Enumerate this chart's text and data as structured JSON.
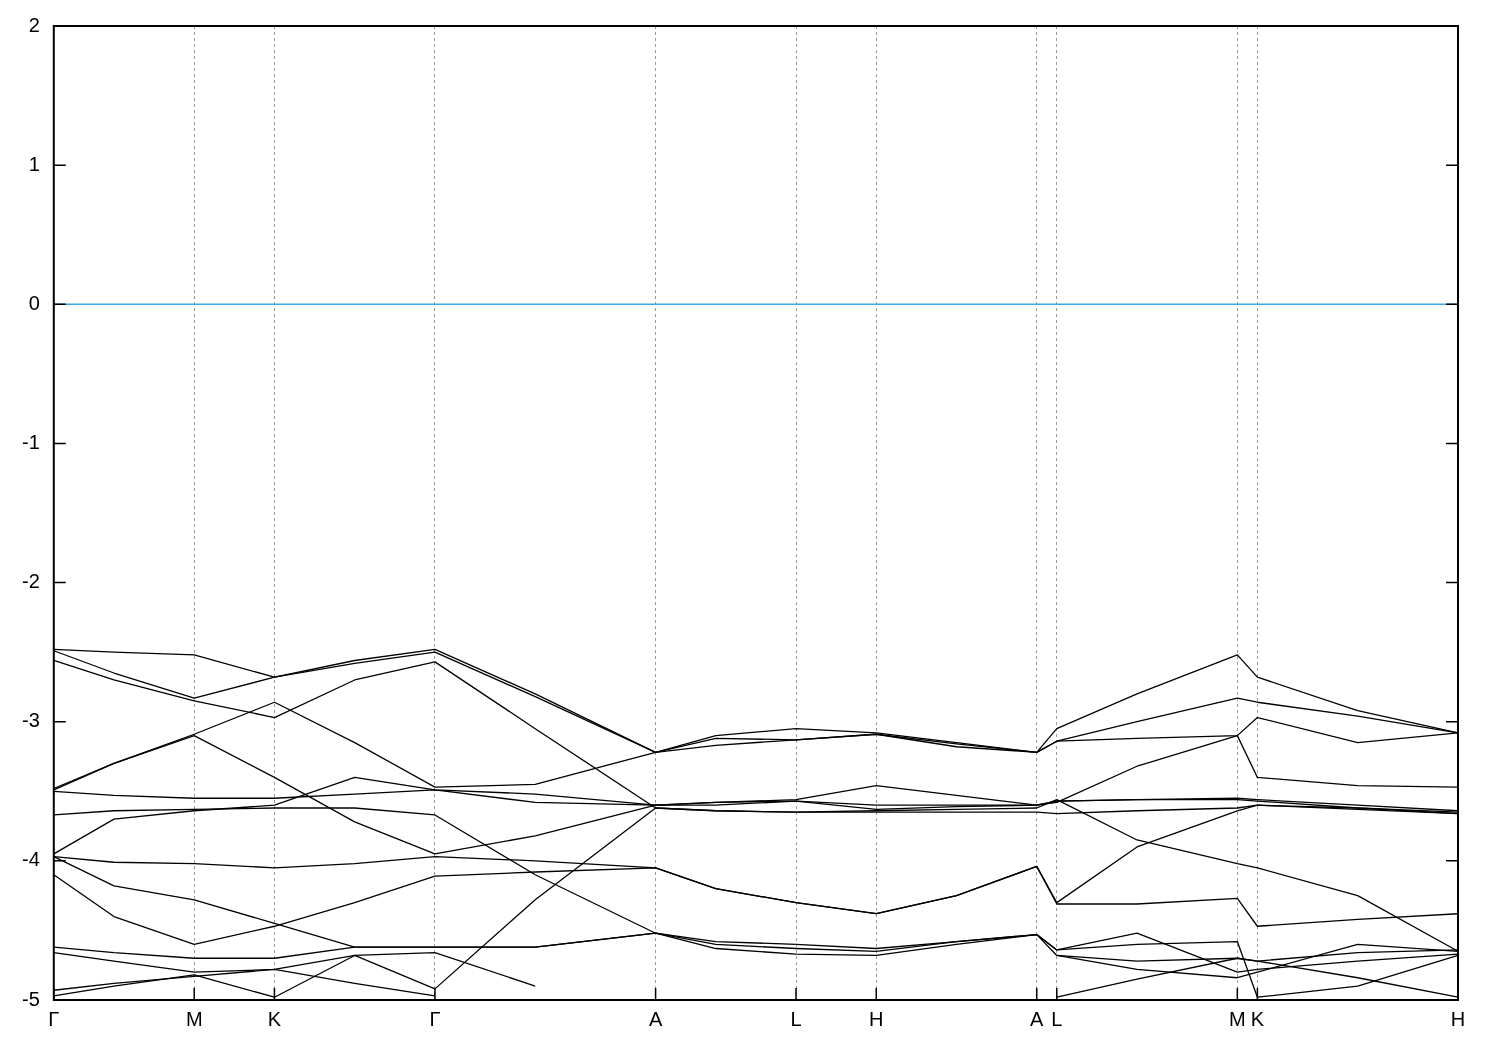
{
  "chart_data": {
    "type": "line",
    "categories": [
      "Γ",
      null,
      null,
      null,
      null,
      null,
      null,
      "M",
      null,
      null,
      null,
      "K",
      null,
      null,
      null,
      null,
      null,
      null,
      null,
      "Γ",
      null,
      null,
      null,
      null,
      null,
      null,
      null,
      null,
      null,
      null,
      "A",
      null,
      null,
      null,
      null,
      null,
      null,
      "L",
      null,
      null,
      null,
      "H",
      null,
      null,
      null,
      null,
      null,
      null,
      null,
      "A",
      "L",
      null,
      null,
      null,
      null,
      null,
      null,
      null,
      null,
      "M",
      "K",
      null,
      null,
      null,
      null,
      null,
      null,
      null,
      null,
      null,
      "H"
    ],
    "series": [
      {
        "color": "#000000",
        "values": [
          -2.48,
          null,
          null,
          -2.5,
          null,
          null,
          null,
          -2.52,
          null,
          null,
          null,
          -2.68,
          null,
          null,
          null,
          -2.56,
          null,
          null,
          null,
          -2.48,
          null,
          null,
          null,
          null,
          -2.8,
          null,
          null,
          null,
          null,
          null,
          -3.22,
          null,
          null,
          -3.1,
          null,
          null,
          null,
          -3.05,
          null,
          null,
          null,
          -3.08,
          null,
          null,
          null,
          -3.15,
          null,
          null,
          null,
          -3.22,
          -3.05,
          null,
          null,
          null,
          -2.8,
          null,
          null,
          null,
          null,
          -2.52,
          -2.68,
          null,
          null,
          null,
          null,
          -2.92,
          null,
          null,
          null,
          null,
          -3.08
        ]
      },
      {
        "color": "#000000",
        "values": [
          -2.49,
          null,
          null,
          -2.65,
          null,
          null,
          null,
          -2.83,
          null,
          null,
          null,
          -2.68,
          null,
          null,
          null,
          -2.58,
          null,
          null,
          null,
          -2.5,
          null,
          null,
          null,
          null,
          -2.82,
          null,
          null,
          null,
          null,
          null,
          -3.22,
          null,
          null,
          -3.17,
          null,
          null,
          null,
          -3.13,
          null,
          null,
          null,
          -3.09,
          null,
          null,
          null,
          -3.16,
          null,
          null,
          null,
          -3.22,
          -3.14,
          null,
          null,
          null,
          -3.0,
          null,
          null,
          null,
          null,
          -2.83,
          -2.86,
          null,
          null,
          null,
          null,
          -2.96,
          null,
          null,
          null,
          null,
          -3.08
        ]
      },
      {
        "color": "#000000",
        "values": [
          -2.56,
          null,
          null,
          -2.7,
          null,
          null,
          null,
          -2.85,
          null,
          null,
          null,
          -2.97,
          null,
          null,
          null,
          -2.7,
          null,
          null,
          null,
          -2.57,
          null,
          null,
          null,
          null,
          -3.05,
          null,
          null,
          null,
          null,
          null,
          -3.62,
          null,
          null,
          -3.64,
          null,
          null,
          null,
          -3.65,
          null,
          null,
          null,
          -3.65,
          null,
          null,
          null,
          -3.65,
          null,
          null,
          null,
          -3.65,
          -3.66,
          null,
          null,
          null,
          -3.64,
          null,
          null,
          null,
          null,
          -3.62,
          -3.6,
          null,
          null,
          null,
          null,
          -3.62,
          null,
          null,
          null,
          null,
          -3.66
        ]
      },
      {
        "color": "#000000",
        "values": [
          -3.48,
          null,
          null,
          -3.3,
          null,
          null,
          null,
          -3.09,
          null,
          null,
          null,
          -2.86,
          null,
          null,
          null,
          -3.15,
          null,
          null,
          null,
          -3.47,
          null,
          null,
          null,
          null,
          -3.45,
          null,
          null,
          null,
          null,
          null,
          -3.22,
          null,
          null,
          -3.12,
          null,
          null,
          null,
          -3.13,
          null,
          null,
          null,
          -3.09,
          null,
          null,
          null,
          -3.18,
          null,
          null,
          null,
          -3.22,
          -3.14,
          null,
          null,
          null,
          -3.12,
          null,
          null,
          null,
          null,
          -3.1,
          -2.97,
          null,
          null,
          null,
          null,
          -3.15,
          null,
          null,
          null,
          null,
          -3.08
        ]
      },
      {
        "color": "#000000",
        "values": [
          -3.49,
          null,
          null,
          -3.3,
          null,
          null,
          null,
          -3.1,
          null,
          null,
          null,
          -3.4,
          null,
          null,
          null,
          -3.72,
          null,
          null,
          null,
          -3.95,
          null,
          null,
          null,
          null,
          -3.82,
          null,
          null,
          null,
          null,
          null,
          -3.6,
          null,
          null,
          -3.58,
          null,
          null,
          null,
          -3.56,
          null,
          null,
          null,
          -3.46,
          null,
          null,
          null,
          -3.53,
          null,
          null,
          null,
          -3.6,
          -3.58,
          null,
          null,
          null,
          -3.32,
          null,
          null,
          null,
          null,
          -3.1,
          -3.4,
          null,
          null,
          null,
          null,
          -3.46,
          null,
          null,
          null,
          null,
          -3.47
        ]
      },
      {
        "color": "#000000",
        "values": [
          -3.5,
          null,
          null,
          -3.53,
          null,
          null,
          null,
          -3.55,
          null,
          null,
          null,
          -3.55,
          null,
          null,
          null,
          -3.52,
          null,
          null,
          null,
          -3.49,
          null,
          null,
          null,
          null,
          -3.58,
          null,
          null,
          null,
          null,
          null,
          -3.6,
          null,
          null,
          -3.58,
          null,
          null,
          null,
          -3.57,
          null,
          null,
          null,
          -3.63,
          null,
          null,
          null,
          -3.61,
          null,
          null,
          null,
          -3.6,
          -3.57,
          null,
          null,
          null,
          -3.56,
          null,
          null,
          null,
          null,
          -3.55,
          -3.56,
          null,
          null,
          null,
          null,
          -3.6,
          null,
          null,
          null,
          null,
          -3.64
        ]
      },
      {
        "color": "#000000",
        "values": [
          -3.67,
          null,
          null,
          -3.64,
          null,
          null,
          null,
          -3.63,
          null,
          null,
          null,
          -3.62,
          null,
          null,
          null,
          -3.62,
          null,
          null,
          null,
          -3.67,
          null,
          null,
          null,
          null,
          -4.1,
          null,
          null,
          null,
          null,
          null,
          -4.52,
          null,
          null,
          -4.6,
          null,
          null,
          null,
          -4.63,
          null,
          null,
          null,
          -4.65,
          null,
          null,
          null,
          -4.58,
          null,
          null,
          null,
          -4.53,
          -4.64,
          null,
          null,
          null,
          -4.52,
          null,
          null,
          null,
          null,
          -4.8,
          -4.78,
          null,
          null,
          null,
          null,
          -4.72,
          null,
          null,
          null,
          null,
          -4.67
        ]
      },
      {
        "color": "#000000",
        "values": [
          -3.95,
          null,
          null,
          -3.7,
          null,
          null,
          null,
          -3.64,
          null,
          null,
          null,
          -3.6,
          null,
          null,
          null,
          -3.4,
          null,
          null,
          null,
          -3.49,
          null,
          null,
          null,
          null,
          -3.52,
          null,
          null,
          null,
          null,
          null,
          -3.6,
          null,
          null,
          -3.6,
          null,
          null,
          null,
          -3.57,
          null,
          null,
          null,
          -3.6,
          null,
          null,
          null,
          -3.6,
          null,
          null,
          null,
          -3.6,
          -3.57,
          null,
          null,
          null,
          -3.56,
          null,
          null,
          null,
          null,
          -3.56,
          -3.57,
          null,
          null,
          null,
          null,
          -3.62,
          null,
          null,
          null,
          null,
          -3.65
        ]
      },
      {
        "color": "#000000",
        "values": [
          -3.97,
          null,
          null,
          -4.01,
          null,
          null,
          null,
          -4.02,
          null,
          null,
          null,
          -4.05,
          null,
          null,
          null,
          -4.02,
          null,
          null,
          null,
          -3.97,
          null,
          null,
          null,
          null,
          -4.0,
          null,
          null,
          null,
          null,
          null,
          -4.05,
          null,
          null,
          -4.2,
          null,
          null,
          null,
          -4.3,
          null,
          null,
          null,
          -4.38,
          null,
          null,
          null,
          -4.25,
          null,
          null,
          null,
          -4.04,
          -4.31,
          null,
          null,
          null,
          -4.31,
          null,
          null,
          null,
          null,
          -4.27,
          -4.47,
          null,
          null,
          null,
          null,
          -4.42,
          null,
          null,
          null,
          null,
          -4.38
        ]
      },
      {
        "color": "#000000",
        "values": [
          -3.97,
          null,
          null,
          -4.18,
          null,
          null,
          null,
          -4.28,
          null,
          null,
          null,
          -4.45,
          null,
          null,
          null,
          -4.62,
          null,
          null,
          null,
          -4.62,
          null,
          null,
          null,
          null,
          -4.62,
          null,
          null,
          null,
          null,
          null,
          -4.52,
          null,
          null,
          -4.58,
          null,
          null,
          null,
          -4.6,
          null,
          null,
          null,
          -4.63,
          null,
          null,
          null,
          -4.58,
          null,
          null,
          null,
          -4.53,
          -4.64,
          null,
          null,
          null,
          -4.6,
          null,
          null,
          null,
          null,
          -4.58,
          -4.98,
          null,
          null,
          null,
          null,
          -4.9,
          null,
          null,
          null,
          null,
          -4.68
        ]
      },
      {
        "color": "#000000",
        "values": [
          -4.1,
          null,
          null,
          -4.4,
          null,
          null,
          null,
          -4.6,
          null,
          null,
          null,
          -4.47,
          null,
          null,
          null,
          -4.3,
          null,
          null,
          null,
          -4.11,
          null,
          null,
          null,
          null,
          -4.08,
          null,
          null,
          null,
          null,
          null,
          -4.05,
          null,
          null,
          -4.2,
          null,
          null,
          null,
          -4.3,
          null,
          null,
          null,
          -4.38,
          null,
          null,
          null,
          -4.25,
          null,
          null,
          null,
          -4.04,
          -4.3,
          null,
          null,
          null,
          -3.9,
          null,
          null,
          null,
          null,
          -3.64,
          -3.6,
          null,
          null,
          null,
          null,
          -3.63,
          null,
          null,
          null,
          null,
          -3.66
        ]
      },
      {
        "color": "#000000",
        "values": [
          -4.62,
          null,
          null,
          -4.66,
          null,
          null,
          null,
          -4.7,
          null,
          null,
          null,
          -4.7,
          null,
          null,
          null,
          -4.62,
          null,
          null,
          null,
          -4.62,
          null,
          null,
          null,
          null,
          -4.62,
          null,
          null,
          null,
          null,
          null,
          -4.52,
          null,
          null,
          -4.63,
          null,
          null,
          null,
          -4.67,
          null,
          null,
          null,
          -4.68,
          null,
          null,
          null,
          -4.6,
          null,
          null,
          null,
          -4.53,
          -4.68,
          null,
          null,
          null,
          -4.78,
          null,
          null,
          null,
          null,
          -4.84,
          -4.8,
          null,
          null,
          null,
          null,
          -4.6,
          null,
          null,
          null,
          null,
          -4.65
        ]
      },
      {
        "color": "#000000",
        "values": [
          -4.66,
          null,
          null,
          -4.72,
          null,
          null,
          null,
          -4.8,
          null,
          null,
          null,
          -4.78,
          null,
          null,
          null,
          -4.68,
          null,
          null,
          null,
          -4.92,
          null,
          null,
          null,
          null,
          -4.28,
          null,
          null,
          null,
          null,
          null,
          -3.62,
          null,
          null,
          -3.64,
          null,
          null,
          null,
          -3.65,
          null,
          null,
          null,
          -3.64,
          null,
          null,
          null,
          -3.63,
          null,
          null,
          null,
          -3.62,
          -3.56,
          null,
          null,
          null,
          -3.85,
          null,
          null,
          null,
          null,
          -4.02,
          -4.05,
          null,
          null,
          null,
          null,
          -4.25,
          null,
          null,
          null,
          null,
          -4.65
        ]
      },
      {
        "color": "#000000",
        "values": [
          -4.93,
          null,
          null,
          -4.88,
          null,
          null,
          null,
          -4.83,
          null,
          null,
          null,
          -4.78,
          null,
          null,
          null,
          -4.88,
          null,
          null,
          null,
          -4.97,
          null,
          null,
          null,
          null,
          null,
          null,
          null,
          null,
          null,
          null,
          null,
          null,
          null,
          null,
          null,
          null,
          null,
          null,
          null,
          null,
          null,
          null,
          null,
          null,
          null,
          null,
          null,
          null,
          null,
          null,
          null,
          null,
          null,
          null,
          null,
          null,
          null,
          null,
          null,
          null,
          null,
          null,
          null,
          null,
          null,
          null,
          null,
          null,
          null,
          null,
          null
        ]
      },
      {
        "color": "#000000",
        "values": [
          null,
          null,
          null,
          null,
          null,
          null,
          null,
          null,
          null,
          null,
          null,
          null,
          null,
          null,
          null,
          null,
          null,
          null,
          null,
          null,
          null,
          null,
          null,
          null,
          null,
          null,
          null,
          null,
          null,
          null,
          null,
          null,
          null,
          null,
          null,
          null,
          null,
          null,
          null,
          null,
          null,
          null,
          null,
          null,
          null,
          null,
          null,
          null,
          null,
          null,
          -4.98,
          null,
          null,
          null,
          -4.85,
          null,
          null,
          null,
          null,
          -4.7,
          -4.72,
          null,
          null,
          null,
          null,
          -4.84,
          null,
          null,
          null,
          null,
          -4.98
        ]
      },
      {
        "color": "#000000",
        "values": [
          -4.97,
          null,
          null,
          -4.9,
          null,
          null,
          null,
          -4.82,
          null,
          null,
          null,
          -4.98,
          null,
          null,
          null,
          -4.68,
          null,
          null,
          null,
          -4.66,
          null,
          null,
          null,
          null,
          -4.9,
          null,
          null,
          null,
          null,
          null,
          null,
          null,
          null,
          null,
          null,
          null,
          null,
          null,
          null,
          null,
          null,
          null,
          null,
          null,
          null,
          null,
          null,
          null,
          null,
          null,
          null,
          null,
          null,
          null,
          null,
          null,
          null,
          null,
          null,
          null,
          null,
          null,
          null,
          null,
          null,
          null,
          null,
          null,
          null,
          null,
          null
        ]
      },
      {
        "color": "#000000",
        "values": [
          null,
          null,
          null,
          null,
          null,
          null,
          null,
          null,
          null,
          null,
          null,
          null,
          null,
          null,
          null,
          null,
          null,
          null,
          null,
          null,
          null,
          null,
          null,
          null,
          null,
          null,
          null,
          null,
          null,
          null,
          null,
          null,
          null,
          null,
          null,
          null,
          null,
          null,
          null,
          null,
          null,
          null,
          null,
          null,
          null,
          null,
          null,
          null,
          null,
          null,
          -4.68,
          null,
          null,
          null,
          -4.72,
          null,
          null,
          null,
          null,
          -4.7,
          -4.72,
          null,
          null,
          null,
          null,
          -4.66,
          null,
          null,
          null,
          null,
          -4.64
        ]
      }
    ],
    "ylim": [
      -5,
      2
    ],
    "yticks": [
      -5,
      -4,
      -3,
      -2,
      -1,
      0,
      1,
      2
    ],
    "grid": "x",
    "legend": false,
    "marker": "none",
    "line_style": "solid",
    "ref_lines": [
      {
        "axis": "y",
        "value": 0,
        "color": "#3fa7dd"
      }
    ]
  }
}
